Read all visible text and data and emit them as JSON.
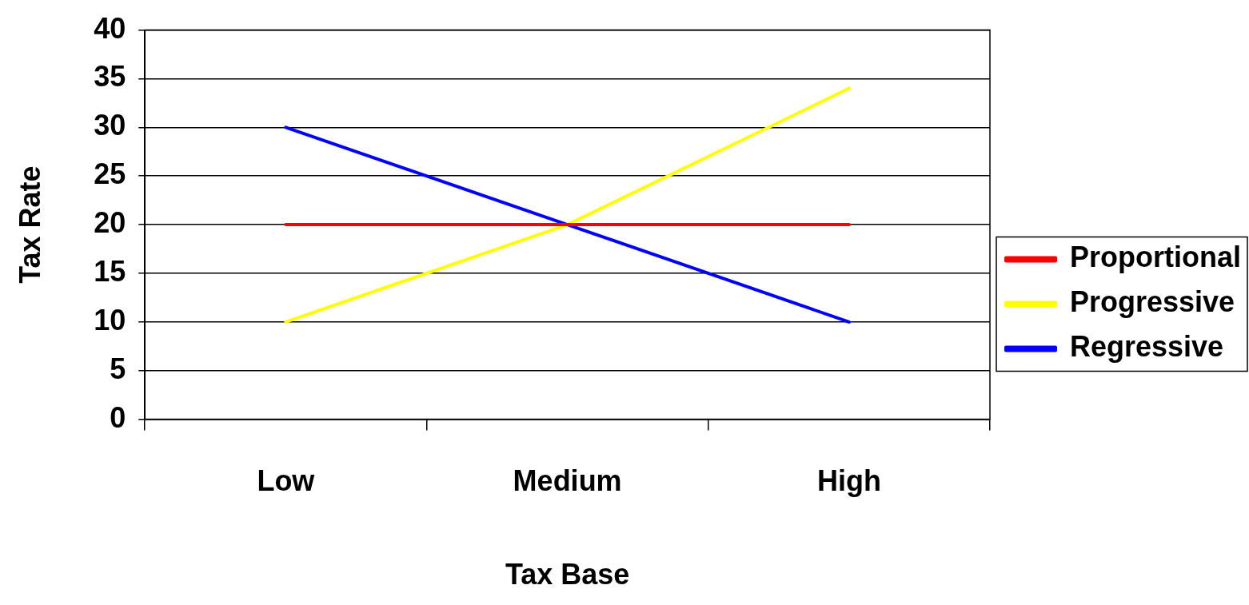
{
  "chart_data": {
    "type": "line",
    "xlabel": "Tax Base",
    "ylabel": "Tax Rate",
    "categories": [
      "Low",
      "Medium",
      "High"
    ],
    "series": [
      {
        "name": "Proportional",
        "color": "#ff0000",
        "values": [
          20,
          20,
          20
        ]
      },
      {
        "name": "Progressive",
        "color": "#ffff00",
        "values": [
          10,
          20,
          34
        ]
      },
      {
        "name": "Regressive",
        "color": "#0000ff",
        "values": [
          30,
          20,
          10
        ]
      }
    ],
    "ylim": [
      0,
      40
    ],
    "yticks": [
      0,
      5,
      10,
      15,
      20,
      25,
      30,
      35,
      40
    ],
    "grid": "y",
    "legend": "right",
    "marker": "none",
    "line_style": "solid"
  }
}
